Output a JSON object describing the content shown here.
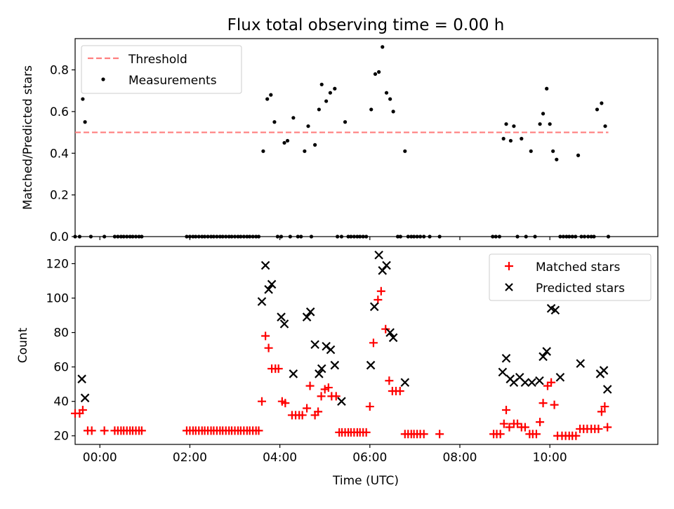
{
  "chart_data": [
    {
      "type": "scatter",
      "title": "Flux total observing time = 0.00 h",
      "xlabel": "",
      "ylabel": "Matched/Predicted stars",
      "xlim": [
        -0.55,
        12.4
      ],
      "ylim": [
        0,
        0.95
      ],
      "yticks": [
        0.0,
        0.2,
        0.4,
        0.6,
        0.8
      ],
      "ytick_labels": [
        "0.0",
        "0.2",
        "0.4",
        "0.6",
        "0.8"
      ],
      "xticks": [
        0,
        2,
        4,
        6,
        8,
        10
      ],
      "show_xtick_labels": false,
      "legend": [
        "Threshold",
        "Measurements"
      ],
      "legend_position": "top-left",
      "series": [
        {
          "name": "Threshold",
          "style": "dashed-line",
          "color": "#ff7f7f",
          "x": [
            -0.55,
            11.3
          ],
          "y": [
            0.5,
            0.5
          ]
        },
        {
          "name": "Measurements",
          "style": "dot",
          "color": "#000000",
          "x": [
            -0.55,
            -0.45,
            -0.38,
            -0.33,
            -0.2,
            0.1,
            0.33,
            0.4,
            0.47,
            0.53,
            0.6,
            0.67,
            0.73,
            0.8,
            0.87,
            0.93,
            1.93,
            2.0,
            2.07,
            2.13,
            2.2,
            2.27,
            2.33,
            2.4,
            2.47,
            2.53,
            2.6,
            2.67,
            2.73,
            2.8,
            2.87,
            2.93,
            3.0,
            3.07,
            3.13,
            3.2,
            3.27,
            3.33,
            3.4,
            3.47,
            3.53,
            3.63,
            3.72,
            3.8,
            3.88,
            3.95,
            4.03,
            4.1,
            4.17,
            4.23,
            4.3,
            4.4,
            4.47,
            4.55,
            4.63,
            4.7,
            4.78,
            4.87,
            4.93,
            5.03,
            5.12,
            5.22,
            5.28,
            5.37,
            5.45,
            5.52,
            5.58,
            5.65,
            5.72,
            5.78,
            5.85,
            5.92,
            6.03,
            6.12,
            6.2,
            6.28,
            6.37,
            6.45,
            6.52,
            6.62,
            6.68,
            6.78,
            6.85,
            6.92,
            6.98,
            7.05,
            7.12,
            7.2,
            7.33,
            7.55,
            8.73,
            8.8,
            8.88,
            8.97,
            9.03,
            9.13,
            9.2,
            9.28,
            9.37,
            9.47,
            9.58,
            9.67,
            9.78,
            9.85,
            9.93,
            10.0,
            10.07,
            10.15,
            10.23,
            10.3,
            10.37,
            10.43,
            10.5,
            10.57,
            10.63,
            10.7,
            10.77,
            10.85,
            10.92,
            10.98,
            11.05,
            11.15,
            11.23,
            11.3
          ],
          "y": [
            0,
            0,
            0.66,
            0.55,
            0,
            0,
            0,
            0,
            0,
            0,
            0,
            0,
            0,
            0,
            0,
            0,
            0,
            0,
            0,
            0,
            0,
            0,
            0,
            0,
            0,
            0,
            0,
            0,
            0,
            0,
            0,
            0,
            0,
            0,
            0,
            0,
            0,
            0,
            0,
            0,
            0,
            0.41,
            0.66,
            0.68,
            0.55,
            0,
            0,
            0.45,
            0.46,
            0,
            0.57,
            0,
            0,
            0.41,
            0.53,
            0,
            0.44,
            0.61,
            0.73,
            0.65,
            0.69,
            0.71,
            0,
            0,
            0.55,
            0,
            0,
            0,
            0,
            0,
            0,
            0,
            0.61,
            0.78,
            0.79,
            0.91,
            0.69,
            0.66,
            0.6,
            0,
            0,
            0.41,
            0,
            0,
            0,
            0,
            0,
            0,
            0,
            0,
            0,
            0,
            0,
            0.47,
            0.54,
            0.46,
            0.53,
            0,
            0.47,
            0,
            0.41,
            0,
            0.54,
            0.59,
            0.71,
            0.54,
            0.41,
            0.37,
            0,
            0,
            0,
            0,
            0,
            0,
            0.39,
            0,
            0,
            0,
            0,
            0,
            0.61,
            0.64,
            0.53,
            0
          ]
        }
      ]
    },
    {
      "type": "scatter",
      "title": "",
      "xlabel": "Time (UTC)",
      "ylabel": "Count",
      "xlim": [
        -0.55,
        12.4
      ],
      "ylim": [
        15,
        130
      ],
      "yticks": [
        20,
        40,
        60,
        80,
        100,
        120
      ],
      "ytick_labels": [
        "20",
        "40",
        "60",
        "80",
        "100",
        "120"
      ],
      "xticks": [
        0,
        2,
        4,
        6,
        8,
        10
      ],
      "xtick_labels": [
        "00:00",
        "02:00",
        "04:00",
        "06:00",
        "08:00",
        "10:00"
      ],
      "legend": [
        "Matched stars",
        "Predicted stars"
      ],
      "legend_position": "top-right",
      "series": [
        {
          "name": "Matched stars",
          "marker": "plus",
          "color": "#ff0000",
          "x": [
            -0.55,
            -0.45,
            -0.38,
            -0.27,
            -0.18,
            0.1,
            0.33,
            0.4,
            0.47,
            0.53,
            0.6,
            0.67,
            0.73,
            0.8,
            0.87,
            0.93,
            1.93,
            2.0,
            2.07,
            2.13,
            2.2,
            2.27,
            2.33,
            2.4,
            2.47,
            2.53,
            2.6,
            2.67,
            2.73,
            2.8,
            2.87,
            2.93,
            3.0,
            3.07,
            3.13,
            3.2,
            3.27,
            3.33,
            3.4,
            3.47,
            3.53,
            3.6,
            3.68,
            3.75,
            3.82,
            3.9,
            3.97,
            4.05,
            4.12,
            4.27,
            4.35,
            4.43,
            4.5,
            4.6,
            4.67,
            4.78,
            4.85,
            4.92,
            5.0,
            5.08,
            5.15,
            5.25,
            5.32,
            5.38,
            5.45,
            5.52,
            5.58,
            5.65,
            5.72,
            5.78,
            5.85,
            5.92,
            6.0,
            6.08,
            6.18,
            6.25,
            6.35,
            6.43,
            6.5,
            6.58,
            6.67,
            6.78,
            6.85,
            6.92,
            6.98,
            7.05,
            7.12,
            7.2,
            7.55,
            8.75,
            8.82,
            8.9,
            8.98,
            9.03,
            9.1,
            9.2,
            9.28,
            9.37,
            9.45,
            9.55,
            9.62,
            9.7,
            9.78,
            9.85,
            9.95,
            10.03,
            10.1,
            10.17,
            10.27,
            10.35,
            10.43,
            10.5,
            10.58,
            10.67,
            10.75,
            10.83,
            10.92,
            11.0,
            11.08,
            11.15,
            11.22,
            11.28
          ],
          "y": [
            33,
            33,
            35,
            23,
            23,
            23,
            23,
            23,
            23,
            23,
            23,
            23,
            23,
            23,
            23,
            23,
            23,
            23,
            23,
            23,
            23,
            23,
            23,
            23,
            23,
            23,
            23,
            23,
            23,
            23,
            23,
            23,
            23,
            23,
            23,
            23,
            23,
            23,
            23,
            23,
            23,
            40,
            78,
            71,
            59,
            59,
            59,
            40,
            39,
            32,
            32,
            32,
            32,
            36,
            49,
            32,
            34,
            43,
            47,
            48,
            43,
            43,
            22,
            22,
            22,
            22,
            22,
            22,
            22,
            22,
            22,
            22,
            37,
            74,
            99,
            104,
            82,
            52,
            46,
            46,
            46,
            21,
            21,
            21,
            21,
            21,
            21,
            21,
            21,
            21,
            21,
            21,
            27,
            35,
            25,
            27,
            27,
            25,
            25,
            21,
            21,
            21,
            28,
            39,
            49,
            51,
            38,
            20,
            20,
            20,
            20,
            20,
            20,
            24,
            24,
            24,
            24,
            24,
            24,
            34,
            37,
            25
          ]
        },
        {
          "name": "Predicted stars",
          "marker": "x",
          "color": "#000000",
          "x": [
            -0.4,
            -0.33,
            3.6,
            3.68,
            3.75,
            3.82,
            4.03,
            4.1,
            4.3,
            4.6,
            4.68,
            4.78,
            4.87,
            4.93,
            5.03,
            5.13,
            5.22,
            5.37,
            6.02,
            6.1,
            6.2,
            6.28,
            6.37,
            6.45,
            6.52,
            6.78,
            8.95,
            9.03,
            9.12,
            9.2,
            9.33,
            9.45,
            9.6,
            9.77,
            9.85,
            9.93,
            10.03,
            10.12,
            10.23,
            10.68,
            11.12,
            11.2,
            11.28
          ],
          "y": [
            53,
            42,
            98,
            119,
            105,
            108,
            89,
            85,
            56,
            89,
            92,
            73,
            56,
            59,
            72,
            70,
            61,
            40,
            61,
            95,
            125,
            116,
            119,
            80,
            77,
            51,
            57,
            65,
            53,
            51,
            54,
            51,
            51,
            52,
            66,
            69,
            94,
            93,
            54,
            62,
            56,
            58,
            47
          ]
        }
      ]
    }
  ]
}
